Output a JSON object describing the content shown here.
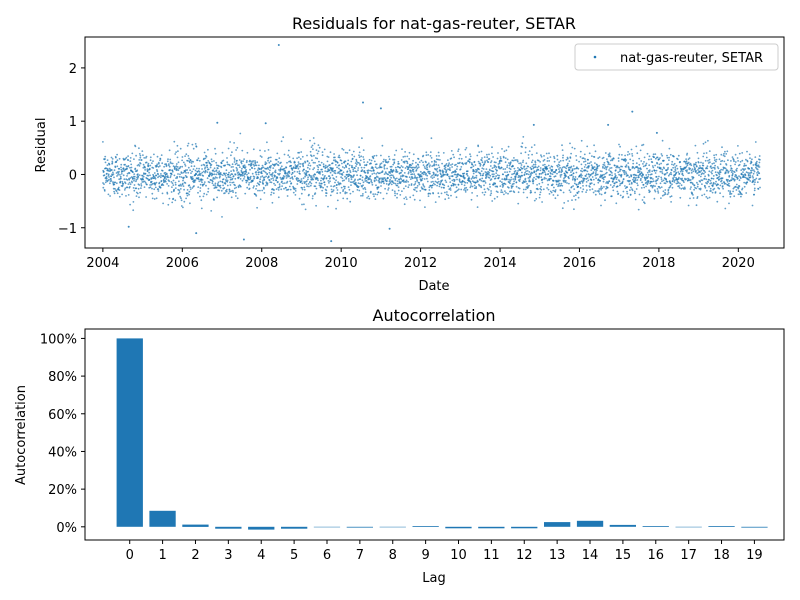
{
  "chart_data": [
    {
      "type": "scatter",
      "title": "Residuals for nat-gas-reuter, SETAR",
      "xlabel": "Date",
      "ylabel": "Residual",
      "xlim": [
        2003.55,
        2021.15
      ],
      "ylim": [
        -1.38,
        2.58
      ],
      "xticks": [
        2004,
        2006,
        2008,
        2010,
        2012,
        2014,
        2016,
        2018,
        2020
      ],
      "yticks": [
        -1,
        0,
        1,
        2
      ],
      "grid": false,
      "legend": {
        "position": "top-right",
        "entries": [
          "nat-gas-reuter, SETAR"
        ]
      },
      "series": [
        {
          "name": "nat-gas-reuter, SETAR",
          "color": "#1f77b4",
          "x_range": [
            2004.0,
            2020.55
          ],
          "n_points": 4200,
          "distribution": "approximately normal, mean 0, std about 0.22",
          "outliers": [
            [
              2008.43,
              2.43
            ],
            [
              2010.55,
              1.35
            ],
            [
              2011.0,
              1.24
            ],
            [
              2017.33,
              1.18
            ],
            [
              2006.88,
              0.97
            ],
            [
              2008.1,
              0.96
            ],
            [
              2014.85,
              0.93
            ],
            [
              2016.72,
              0.93
            ],
            [
              2017.95,
              0.78
            ],
            [
              2006.35,
              -1.1
            ],
            [
              2007.55,
              -1.22
            ],
            [
              2009.75,
              -1.25
            ],
            [
              2011.22,
              -1.02
            ],
            [
              2004.65,
              -0.98
            ]
          ]
        }
      ]
    },
    {
      "type": "bar",
      "title": "Autocorrelation",
      "xlabel": "Lag",
      "ylabel": "Autocorrelation",
      "ylim": [
        -0.07,
        1.05
      ],
      "yticks": [
        0,
        0.2,
        0.4,
        0.6,
        0.8,
        1.0
      ],
      "ytick_labels": [
        "0%",
        "20%",
        "40%",
        "60%",
        "80%",
        "100%"
      ],
      "color": "#1f77b4",
      "categories": [
        "0",
        "1",
        "2",
        "3",
        "4",
        "5",
        "6",
        "7",
        "8",
        "9",
        "10",
        "11",
        "12",
        "13",
        "14",
        "15",
        "16",
        "17",
        "18",
        "19"
      ],
      "values": [
        1.0,
        0.085,
        0.012,
        -0.01,
        -0.015,
        -0.01,
        0.0,
        -0.004,
        0.0,
        0.004,
        -0.008,
        -0.008,
        -0.008,
        0.025,
        0.032,
        0.01,
        0.004,
        0.0,
        0.004,
        -0.004
      ]
    }
  ]
}
